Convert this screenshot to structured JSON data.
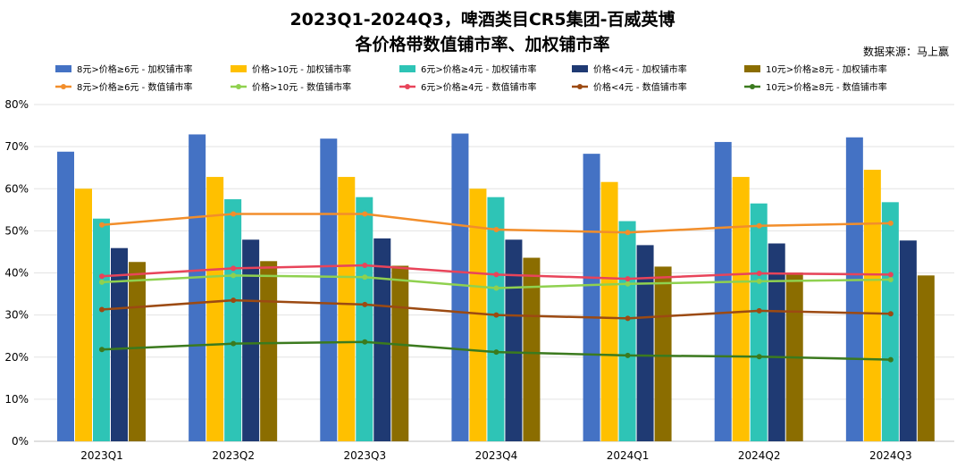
{
  "chart_data": {
    "type": "bar",
    "title": "2023Q1-2024Q3，啤酒类目CR5集团-百威英博",
    "subtitle": "各价格带数值铺市率、加权铺市率",
    "source": "数据来源：马上赢",
    "categories": [
      "2023Q1",
      "2023Q2",
      "2023Q3",
      "2023Q4",
      "2024Q1",
      "2024Q2",
      "2024Q3"
    ],
    "ylim": [
      0,
      80
    ],
    "yticks": [
      "0%",
      "10%",
      "20%",
      "30%",
      "40%",
      "50%",
      "60%",
      "70%",
      "80%"
    ],
    "grid": true,
    "legend_position": "top",
    "bar_series": [
      {
        "name": "8元>价格≥6元 - 加权铺市率",
        "color": "#4472C4",
        "values": [
          68.8,
          72.9,
          71.9,
          73.1,
          68.3,
          71.1,
          72.2
        ]
      },
      {
        "name": "价格>10元 - 加权铺市率",
        "color": "#FFC000",
        "values": [
          60.0,
          62.8,
          62.8,
          60.0,
          61.6,
          62.8,
          64.5
        ]
      },
      {
        "name": "6元>价格≥4元 - 加权铺市率",
        "color": "#2EC4B6",
        "values": [
          52.9,
          57.5,
          58.0,
          58.0,
          52.3,
          56.5,
          56.8
        ]
      },
      {
        "name": "价格<4元 - 加权铺市率",
        "color": "#1F3A73",
        "values": [
          45.9,
          47.9,
          48.2,
          47.9,
          46.6,
          47.0,
          47.7
        ]
      },
      {
        "name": "10元>价格≥8元 - 加权铺市率",
        "color": "#8B6D00",
        "values": [
          42.6,
          42.8,
          41.7,
          43.6,
          41.5,
          40.1,
          39.4
        ]
      }
    ],
    "line_series": [
      {
        "name": "8元>价格≥6元 - 数值铺市率",
        "color": "#F28E2B",
        "values": [
          51.4,
          54.0,
          54.0,
          50.3,
          49.6,
          51.2,
          51.8
        ]
      },
      {
        "name": "价格>10元 - 数值铺市率",
        "color": "#8FD14F",
        "values": [
          37.8,
          39.4,
          39.0,
          36.4,
          37.4,
          38.0,
          38.4
        ]
      },
      {
        "name": "6元>价格≥4元 - 数值铺市率",
        "color": "#E8445A",
        "values": [
          39.2,
          41.1,
          41.8,
          39.6,
          38.6,
          39.9,
          39.6
        ]
      },
      {
        "name": "价格<4元 - 数值铺市率",
        "color": "#9C4A12",
        "values": [
          31.3,
          33.5,
          32.5,
          30.0,
          29.2,
          31.0,
          30.3
        ]
      },
      {
        "name": "10元>价格≥8元 - 数值铺市率",
        "color": "#3B7A1E",
        "values": [
          21.8,
          23.2,
          23.6,
          21.2,
          20.4,
          20.1,
          19.4
        ]
      }
    ]
  }
}
